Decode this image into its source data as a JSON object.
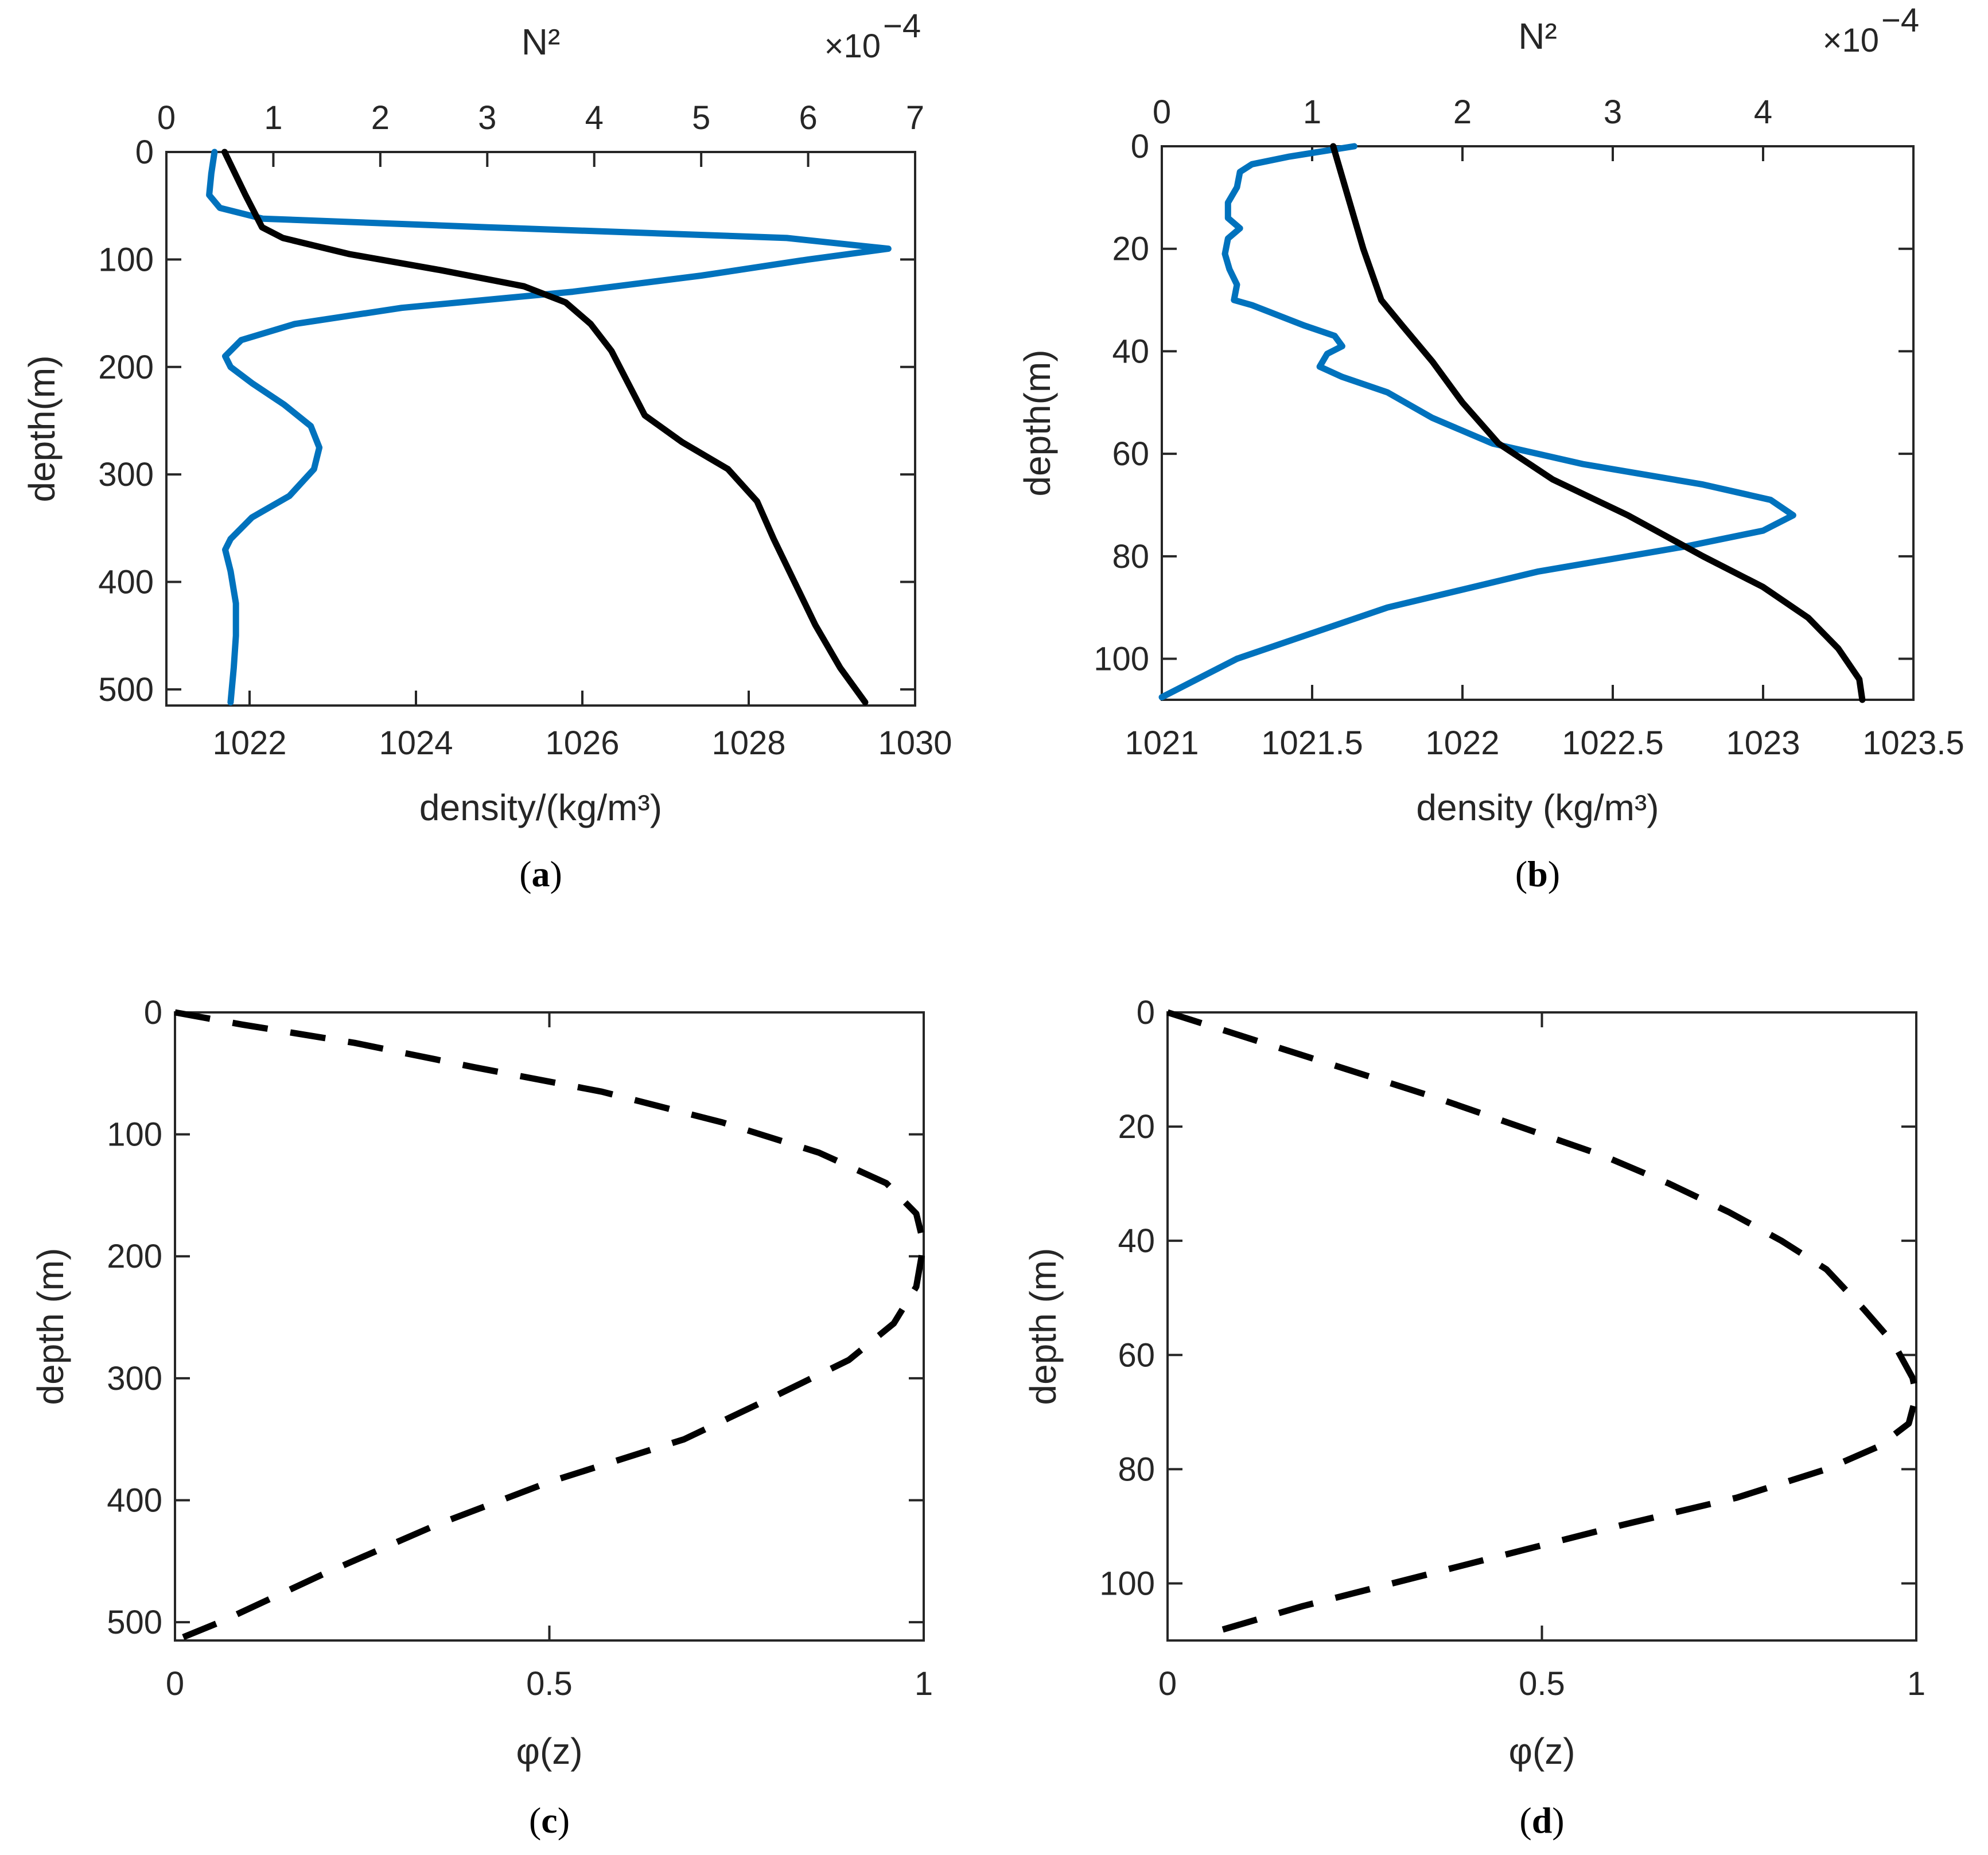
{
  "colors": {
    "n2": "#0072bd",
    "density": "#000000",
    "mode": "#000000",
    "axis": "#262626"
  },
  "chart_data": [
    {
      "id": "a",
      "type": "line",
      "panel_label": "a",
      "xlabel": "density/(kg/m³)",
      "ylabel": "depth(m)",
      "top_xlabel": "N²",
      "exponent_label": "×10",
      "exponent_power": "−4",
      "ylim": [
        0,
        515
      ],
      "yticks": [
        0,
        100,
        200,
        300,
        400,
        500
      ],
      "xlim_bottom": [
        1021,
        1030
      ],
      "xticks_bottom": [
        1022,
        1024,
        1026,
        1028,
        1030
      ],
      "xlim_top": [
        0,
        7
      ],
      "xticks_top": [
        0,
        1,
        2,
        3,
        4,
        5,
        6,
        7
      ],
      "series": [
        {
          "name": "N²",
          "axis": "top",
          "color": "#0072bd",
          "points": [
            [
              0.45,
              0
            ],
            [
              0.42,
              20
            ],
            [
              0.4,
              40
            ],
            [
              0.5,
              52
            ],
            [
              0.9,
              62
            ],
            [
              3.0,
              70
            ],
            [
              5.8,
              80
            ],
            [
              6.75,
              90
            ],
            [
              6.0,
              100
            ],
            [
              5.0,
              115
            ],
            [
              3.8,
              130
            ],
            [
              2.2,
              145
            ],
            [
              1.2,
              160
            ],
            [
              0.7,
              175
            ],
            [
              0.55,
              190
            ],
            [
              0.6,
              200
            ],
            [
              0.8,
              215
            ],
            [
              1.1,
              235
            ],
            [
              1.35,
              255
            ],
            [
              1.43,
              275
            ],
            [
              1.38,
              295
            ],
            [
              1.15,
              320
            ],
            [
              0.8,
              340
            ],
            [
              0.6,
              360
            ],
            [
              0.55,
              370
            ],
            [
              0.6,
              390
            ],
            [
              0.65,
              420
            ],
            [
              0.65,
              450
            ],
            [
              0.63,
              480
            ],
            [
              0.6,
              512
            ]
          ]
        },
        {
          "name": "density",
          "axis": "bottom",
          "color": "#000000",
          "points": [
            [
              1021.7,
              0
            ],
            [
              1021.95,
              40
            ],
            [
              1022.15,
              70
            ],
            [
              1022.4,
              80
            ],
            [
              1023.2,
              95
            ],
            [
              1024.3,
              110
            ],
            [
              1025.3,
              125
            ],
            [
              1025.8,
              140
            ],
            [
              1026.1,
              160
            ],
            [
              1026.35,
              185
            ],
            [
              1026.55,
              215
            ],
            [
              1026.75,
              245
            ],
            [
              1027.2,
              270
            ],
            [
              1027.75,
              295
            ],
            [
              1028.1,
              325
            ],
            [
              1028.3,
              360
            ],
            [
              1028.55,
              400
            ],
            [
              1028.8,
              440
            ],
            [
              1029.1,
              480
            ],
            [
              1029.4,
              512
            ]
          ]
        }
      ]
    },
    {
      "id": "b",
      "type": "line",
      "panel_label": "b",
      "xlabel": "density (kg/m³)",
      "ylabel": "depth(m)",
      "top_xlabel": "N²",
      "exponent_label": "×10",
      "exponent_power": "−4",
      "ylim": [
        0,
        108
      ],
      "yticks": [
        0,
        20,
        40,
        60,
        80,
        100
      ],
      "xlim_bottom": [
        1021,
        1023.5
      ],
      "xticks_bottom": [
        1021,
        1021.5,
        1022,
        1022.5,
        1023,
        1023.5
      ],
      "xlim_top": [
        0,
        5
      ],
      "xticks_top": [
        0,
        1,
        2,
        3,
        4
      ],
      "series": [
        {
          "name": "N²",
          "axis": "top",
          "color": "#0072bd",
          "points": [
            [
              1.28,
              0
            ],
            [
              0.85,
              2
            ],
            [
              0.6,
              3.5
            ],
            [
              0.52,
              5
            ],
            [
              0.5,
              8
            ],
            [
              0.44,
              11
            ],
            [
              0.44,
              14
            ],
            [
              0.52,
              16
            ],
            [
              0.44,
              18
            ],
            [
              0.42,
              21
            ],
            [
              0.45,
              24
            ],
            [
              0.5,
              27
            ],
            [
              0.48,
              30
            ],
            [
              0.6,
              31
            ],
            [
              0.95,
              35
            ],
            [
              1.15,
              37
            ],
            [
              1.2,
              39
            ],
            [
              1.1,
              40.5
            ],
            [
              1.05,
              43
            ],
            [
              1.2,
              45
            ],
            [
              1.5,
              48
            ],
            [
              1.8,
              53
            ],
            [
              2.2,
              58
            ],
            [
              2.8,
              62
            ],
            [
              3.6,
              66
            ],
            [
              4.05,
              69
            ],
            [
              4.2,
              72
            ],
            [
              4.0,
              75
            ],
            [
              3.5,
              78
            ],
            [
              2.5,
              83
            ],
            [
              1.5,
              90
            ],
            [
              0.5,
              100
            ],
            [
              0,
              107.5
            ]
          ]
        },
        {
          "name": "density",
          "axis": "bottom",
          "color": "#000000",
          "points": [
            [
              1021.57,
              0
            ],
            [
              1021.62,
              10
            ],
            [
              1021.67,
              20
            ],
            [
              1021.73,
              30
            ],
            [
              1021.8,
              35
            ],
            [
              1021.9,
              42
            ],
            [
              1022.0,
              50
            ],
            [
              1022.12,
              58
            ],
            [
              1022.3,
              65
            ],
            [
              1022.55,
              72
            ],
            [
              1022.8,
              80
            ],
            [
              1023.0,
              86
            ],
            [
              1023.15,
              92
            ],
            [
              1023.25,
              98
            ],
            [
              1023.32,
              104
            ],
            [
              1023.33,
              108
            ]
          ]
        }
      ]
    },
    {
      "id": "c",
      "type": "line",
      "panel_label": "c",
      "xlabel": "φ(z)",
      "ylabel": "depth (m)",
      "ylim": [
        0,
        515
      ],
      "yticks": [
        0,
        100,
        200,
        300,
        400,
        500
      ],
      "xlim": [
        0,
        1
      ],
      "xticks": [
        0,
        0.5,
        1
      ],
      "xtick_labels": [
        "0",
        "0.5",
        "1"
      ],
      "series": [
        {
          "name": "φ(z)",
          "style": "dashed",
          "color": "#000000",
          "points": [
            [
              0,
              0
            ],
            [
              0.09,
              10
            ],
            [
              0.24,
              25
            ],
            [
              0.4,
              45
            ],
            [
              0.57,
              65
            ],
            [
              0.73,
              90
            ],
            [
              0.86,
              115
            ],
            [
              0.95,
              140
            ],
            [
              0.99,
              165
            ],
            [
              1.0,
              190
            ],
            [
              0.99,
              225
            ],
            [
              0.96,
              255
            ],
            [
              0.9,
              285
            ],
            [
              0.8,
              315
            ],
            [
              0.68,
              350
            ],
            [
              0.5,
              385
            ],
            [
              0.35,
              420
            ],
            [
              0.2,
              460
            ],
            [
              0.06,
              500
            ],
            [
              0,
              515
            ]
          ]
        }
      ]
    },
    {
      "id": "d",
      "type": "line",
      "panel_label": "d",
      "xlabel": "φ(z)",
      "ylabel": "depth (m)",
      "ylim": [
        0,
        110
      ],
      "yticks": [
        0,
        20,
        40,
        60,
        80,
        100
      ],
      "xlim": [
        0,
        1
      ],
      "xticks": [
        0,
        0.5,
        1
      ],
      "xtick_labels": [
        "0",
        "0.5",
        "1"
      ],
      "series": [
        {
          "name": "φ(z)",
          "style": "dashed",
          "color": "#000000",
          "points": [
            [
              0,
              0
            ],
            [
              0.12,
              5
            ],
            [
              0.24,
              10
            ],
            [
              0.36,
              15
            ],
            [
              0.47,
              20
            ],
            [
              0.58,
              25
            ],
            [
              0.67,
              30
            ],
            [
              0.75,
              35
            ],
            [
              0.82,
              40
            ],
            [
              0.88,
              45
            ],
            [
              0.93,
              52
            ],
            [
              0.97,
              58
            ],
            [
              0.995,
              64
            ],
            [
              1.0,
              67
            ],
            [
              0.99,
              72
            ],
            [
              0.95,
              76
            ],
            [
              0.88,
              80
            ],
            [
              0.76,
              85
            ],
            [
              0.6,
              90
            ],
            [
              0.45,
              95
            ],
            [
              0.3,
              100
            ],
            [
              0.18,
              104
            ],
            [
              0.05,
              109
            ]
          ]
        }
      ]
    }
  ]
}
